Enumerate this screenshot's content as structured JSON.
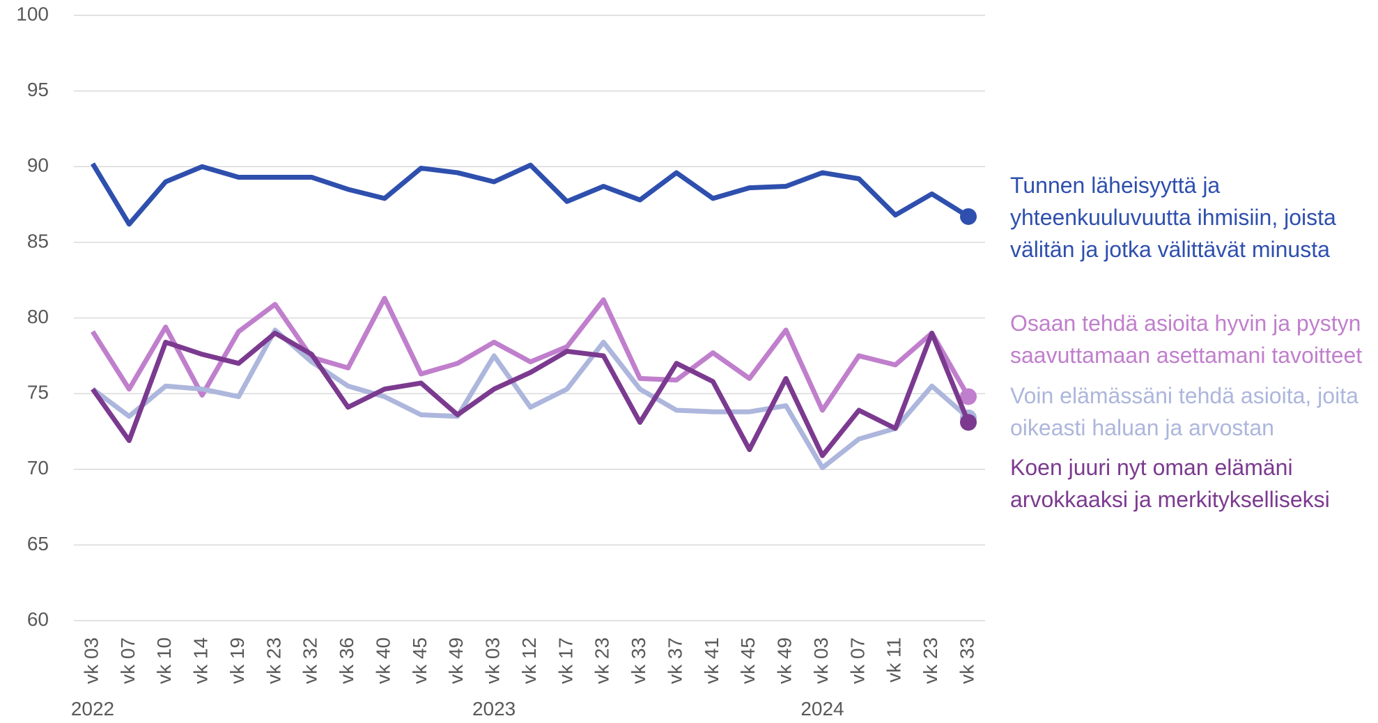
{
  "chart_data": {
    "type": "line",
    "categories": [
      "vk 03",
      "vk 07",
      "vk 10",
      "vk 14",
      "vk 19",
      "vk 23",
      "vk 32",
      "vk 36",
      "vk 40",
      "vk 45",
      "vk 49",
      "vk 03",
      "vk 12",
      "vk 17",
      "vk 23",
      "vk 33",
      "vk 37",
      "vk 41",
      "vk 45",
      "vk 49",
      "vk 03",
      "vk 07",
      "vk 11",
      "vk 23",
      "vk 33"
    ],
    "year_groups": [
      {
        "label": "2022",
        "start": 0
      },
      {
        "label": "2023",
        "start": 11
      },
      {
        "label": "2024",
        "start": 20
      }
    ],
    "ylim": [
      60,
      100
    ],
    "yticks": [
      60,
      65,
      70,
      75,
      80,
      85,
      90,
      95,
      100
    ],
    "grid": true,
    "series": [
      {
        "name": "Tunnen läheisyyttä ja yhteenkuuluvuutta ihmisiin, joista välitän ja jotka välittävät minusta",
        "color": "#2e4fad",
        "values": [
          90.2,
          86.2,
          89.0,
          90.0,
          89.3,
          89.3,
          89.3,
          88.5,
          87.9,
          89.9,
          89.6,
          89.0,
          90.1,
          87.7,
          88.7,
          87.8,
          89.6,
          87.9,
          88.6,
          88.7,
          89.6,
          89.2,
          86.8,
          88.2,
          86.7
        ]
      },
      {
        "name": "Osaan tehdä asioita hyvin ja pystyn saavuttamaan asettamani tavoitteet",
        "color": "#c07fcc",
        "values": [
          79.1,
          75.3,
          79.4,
          74.9,
          79.1,
          80.9,
          77.4,
          76.7,
          81.3,
          76.3,
          77.0,
          78.4,
          77.1,
          78.1,
          81.2,
          76.0,
          75.9,
          77.7,
          76.0,
          79.2,
          73.9,
          77.5,
          76.9,
          79.0,
          74.8
        ]
      },
      {
        "name": "Voin elämässäni tehdä asioita, joita oikeasti haluan ja arvostan",
        "color": "#adb6dc",
        "values": [
          75.3,
          73.5,
          75.5,
          75.3,
          74.8,
          79.2,
          77.1,
          75.5,
          74.8,
          73.6,
          73.5,
          77.5,
          74.1,
          75.3,
          78.4,
          75.3,
          73.9,
          73.8,
          73.8,
          74.2,
          70.1,
          72.0,
          72.7,
          75.5,
          73.4
        ]
      },
      {
        "name": "Koen juuri nyt oman elämäni arvokkaaksi ja merkitykselliseksi",
        "color": "#7b3a8f",
        "values": [
          75.3,
          71.9,
          78.4,
          77.6,
          77.0,
          79.0,
          77.6,
          74.1,
          75.3,
          75.7,
          73.6,
          75.3,
          76.4,
          77.8,
          77.5,
          73.1,
          77.0,
          75.8,
          71.3,
          76.0,
          70.9,
          73.9,
          72.7,
          79.0,
          73.1
        ]
      }
    ]
  }
}
